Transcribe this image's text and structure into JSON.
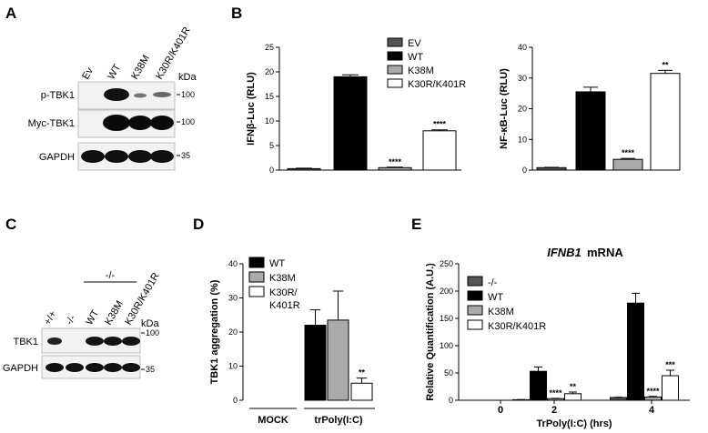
{
  "panels": {
    "A": {
      "label": "A",
      "lanes": [
        "Ev",
        "WT",
        "K38M",
        "K30R/K401R"
      ],
      "rows": [
        "p-TBK1",
        "Myc-TBK1",
        "GAPDH"
      ],
      "kda_header": "kDa",
      "markers": [
        "100",
        "100",
        "35"
      ]
    },
    "C": {
      "label": "C",
      "group_label": "-/-",
      "lanes": [
        "+/+",
        "-/-",
        "WT",
        "K38M",
        "K30R/K401R"
      ],
      "rows": [
        "TBK1",
        "GAPDH"
      ],
      "kda_header": "kDa",
      "markers": [
        "100",
        "35"
      ]
    },
    "B_label": "B",
    "D_label": "D",
    "E_label": "E"
  },
  "chart_data": [
    {
      "id": "B1",
      "type": "bar",
      "ylabel": "IFNβ-Luc (RLU)",
      "ylim": [
        0,
        25
      ],
      "yticks": [
        0,
        5,
        10,
        15,
        20,
        25
      ],
      "categories": [
        "EV",
        "WT",
        "K38M",
        "K30R/K401R"
      ],
      "values": [
        0.3,
        19.0,
        0.5,
        8.0
      ],
      "errors": [
        0.1,
        0.4,
        0.1,
        0.2
      ],
      "annotations": [
        "",
        "",
        "****",
        "****"
      ],
      "legend": {
        "placement": "top-right",
        "entries": [
          "EV",
          "WT",
          "K38M",
          "K30R/K401R"
        ]
      },
      "colors": [
        "#555555",
        "#000000",
        "#aaaaaa",
        "#ffffff"
      ]
    },
    {
      "id": "B2",
      "type": "bar",
      "ylabel": "NF-κB-Luc (RLU)",
      "ylim": [
        0,
        40
      ],
      "yticks": [
        0,
        10,
        20,
        30,
        40
      ],
      "categories": [
        "EV",
        "WT",
        "K38M",
        "K30R/K401R"
      ],
      "values": [
        0.8,
        25.5,
        3.5,
        31.5
      ],
      "errors": [
        0.1,
        1.5,
        0.3,
        1.0
      ],
      "annotations": [
        "",
        "",
        "****",
        "**"
      ],
      "colors": [
        "#555555",
        "#000000",
        "#aaaaaa",
        "#ffffff"
      ]
    },
    {
      "id": "D",
      "type": "bar",
      "ylabel": "TBK1 aggregation (%)",
      "ylim": [
        0,
        40
      ],
      "yticks": [
        0,
        10,
        20,
        30,
        40
      ],
      "groups": [
        "MOCK",
        "trPoly(I:C)"
      ],
      "series": [
        {
          "name": "WT",
          "values": [
            0,
            22
          ],
          "errors": [
            0,
            4.5
          ]
        },
        {
          "name": "K38M",
          "values": [
            0,
            23.5
          ],
          "errors": [
            0,
            8.5
          ]
        },
        {
          "name": "K30R/ K401R",
          "values": [
            0,
            5
          ],
          "errors": [
            0,
            1.5
          ]
        }
      ],
      "annotations": [
        "",
        "",
        "**"
      ],
      "legend": {
        "placement": "top-left",
        "entries": [
          "WT",
          "K38M",
          "K30R/",
          "K401R"
        ]
      },
      "colors": [
        "#000000",
        "#aaaaaa",
        "#ffffff"
      ]
    },
    {
      "id": "E",
      "type": "bar",
      "title": "IFNB1",
      "title_suffix": " mRNA",
      "ylabel": "Relative Quantification (A.U.)",
      "xlabel": "TrPoly(I:C) (hrs)",
      "ylim": [
        0,
        250
      ],
      "yticks": [
        0,
        50,
        100,
        150,
        200,
        250
      ],
      "x": [
        "0",
        "2",
        "4"
      ],
      "series": [
        {
          "name": "-/-",
          "values": [
            0,
            1,
            5
          ],
          "errors": [
            0,
            0.3,
            0.5
          ]
        },
        {
          "name": "WT",
          "values": [
            0,
            53,
            178
          ],
          "errors": [
            0,
            8,
            18
          ]
        },
        {
          "name": "K38M",
          "values": [
            0,
            3,
            6
          ],
          "errors": [
            0,
            0.5,
            1
          ]
        },
        {
          "name": "K30R/K401R",
          "values": [
            0,
            12,
            45
          ],
          "errors": [
            0,
            3,
            10
          ]
        }
      ],
      "annotations": [
        [
          "",
          "",
          "",
          ""
        ],
        [
          "",
          "",
          "****",
          "**"
        ],
        [
          "",
          "",
          "****",
          "***"
        ]
      ],
      "legend": {
        "placement": "top-left",
        "entries": [
          "-/-",
          "WT",
          "K38M",
          "K30R/K401R"
        ]
      },
      "colors": [
        "#555555",
        "#000000",
        "#aaaaaa",
        "#ffffff"
      ]
    }
  ]
}
